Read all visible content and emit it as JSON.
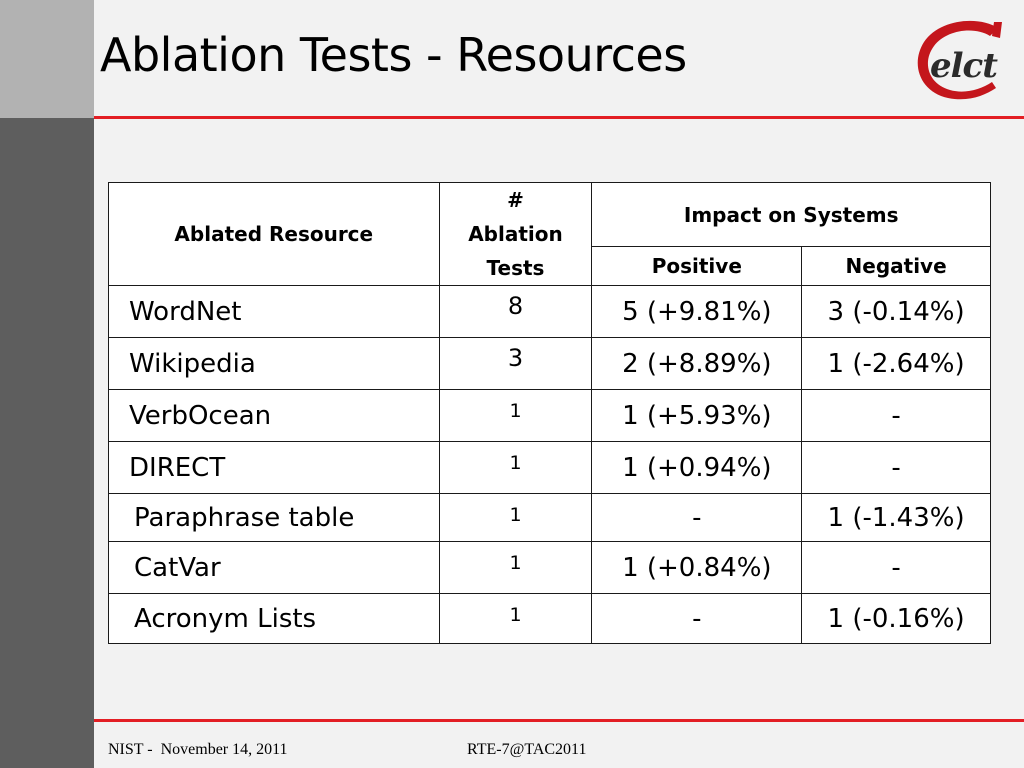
{
  "slide": {
    "title": "Ablation Tests - Resources",
    "logo_text": "elct"
  },
  "table": {
    "header": {
      "resource": "Ablated Resource",
      "tests": "# Ablation Tests",
      "impact": "Impact on Systems",
      "positive": "Positive",
      "negative": "Negative"
    },
    "rows": [
      {
        "resource": "WordNet",
        "tests": "8",
        "positive": "5 (+9.81%)",
        "negative": "3 (-0.14%)"
      },
      {
        "resource": "Wikipedia",
        "tests": "3",
        "positive": "2 (+8.89%)",
        "negative": "1 (-2.64%)"
      },
      {
        "resource": "VerbOcean",
        "tests": "1",
        "positive": "1 (+5.93%)",
        "negative": "-"
      },
      {
        "resource": "DIRECT",
        "tests": "1",
        "positive": "1 (+0.94%)",
        "negative": "-"
      },
      {
        "resource": "Paraphrase table",
        "tests": "1",
        "positive": "-",
        "negative": "1 (-1.43%)"
      },
      {
        "resource": "CatVar",
        "tests": "1",
        "positive": "1 (+0.84%)",
        "negative": "-"
      },
      {
        "resource": "Acronym Lists",
        "tests": "1",
        "positive": "-",
        "negative": "1 (-0.16%)"
      }
    ]
  },
  "footer": {
    "left": "NIST -  November 14, 2011",
    "center": "RTE-7@TAC2011"
  },
  "colors": {
    "accent_red": "#e31e24",
    "sidebar_light": "#b2b2b2",
    "sidebar_dark": "#5e5e5e",
    "background": "#f2f2f2"
  }
}
